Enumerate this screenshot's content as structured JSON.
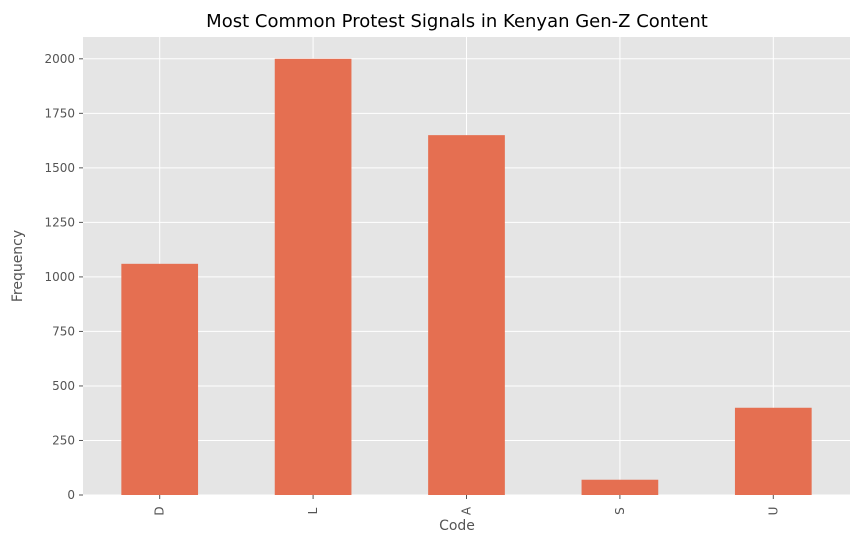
{
  "chart_data": {
    "type": "bar",
    "title": "Most Common Protest Signals in Kenyan Gen-Z Content",
    "xlabel": "Code",
    "ylabel": "Frequency",
    "categories": [
      "D",
      "L",
      "A",
      "S",
      "U"
    ],
    "values": [
      1060,
      2000,
      1650,
      70,
      400
    ],
    "ylim": [
      0,
      2100
    ],
    "yticks": [
      0,
      250,
      500,
      750,
      1000,
      1250,
      1500,
      1750,
      2000
    ],
    "ytick_labels": [
      "0",
      "250",
      "500",
      "750",
      "1000",
      "1250",
      "1500",
      "1750",
      "2000"
    ],
    "grid": true,
    "legend": "none",
    "colors": {
      "bar": "#E56F51",
      "plot_background": "#E5E5E5",
      "grid": "#FFFFFF",
      "text": "#555555"
    }
  }
}
